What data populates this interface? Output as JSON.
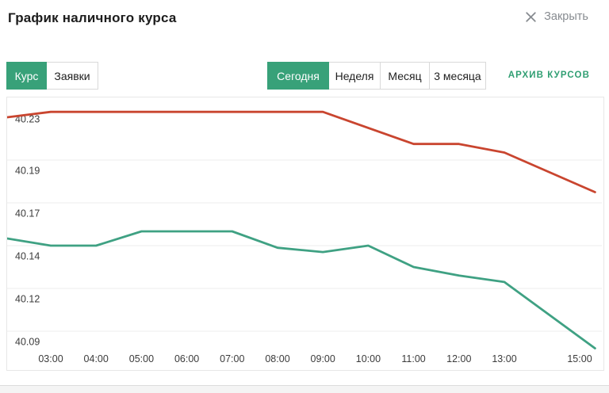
{
  "header": {
    "title": "График наличного курса",
    "close_label": "Закрыть"
  },
  "view_tabs": [
    {
      "label": "Курс",
      "active": true
    },
    {
      "label": "Заявки",
      "active": false
    }
  ],
  "period_tabs": [
    {
      "label": "Сегодня",
      "active": true
    },
    {
      "label": "Неделя",
      "active": false
    },
    {
      "label": "Месяц",
      "active": false
    },
    {
      "label": "3 месяца",
      "active": false
    }
  ],
  "archive_link_label": "АРХИВ КУРСОВ",
  "colors": {
    "accent_green": "#38a179",
    "line_red": "#c9452f",
    "line_green": "#3fa183",
    "grid": "#ececec",
    "axis_text": "#3b3b3b"
  },
  "chart_data": {
    "type": "line",
    "title": "График наличного курса",
    "xlabel": "",
    "ylabel": "",
    "grid": "horizontal",
    "legend": "none",
    "x_unit": "hour_of_day",
    "x_ticks": [
      {
        "hour": 3,
        "label": "03:00"
      },
      {
        "hour": 4,
        "label": "04:00"
      },
      {
        "hour": 5,
        "label": "05:00"
      },
      {
        "hour": 6,
        "label": "06:00"
      },
      {
        "hour": 7,
        "label": "07:00"
      },
      {
        "hour": 8,
        "label": "08:00"
      },
      {
        "hour": 9,
        "label": "09:00"
      },
      {
        "hour": 10,
        "label": "10:00"
      },
      {
        "hour": 11,
        "label": "11:00"
      },
      {
        "hour": 12,
        "label": "12:00"
      },
      {
        "hour": 13,
        "label": "13:00"
      },
      {
        "hour": 15,
        "label": "15:00"
      }
    ],
    "y_ticks": [
      {
        "value": 40.23,
        "label": "40.23",
        "grid": false,
        "dy": 2
      },
      {
        "value": 40.19,
        "label": "40.19"
      },
      {
        "value": 40.17,
        "label": "40.17"
      },
      {
        "value": 40.14,
        "label": "40.14"
      },
      {
        "value": 40.12,
        "label": "40.12"
      },
      {
        "value": 40.09,
        "label": "40.09"
      }
    ],
    "series": [
      {
        "name": "red_line",
        "color": "#c9452f",
        "points": [
          [
            2.04,
            40.23
          ],
          [
            3,
            40.235
          ],
          [
            9,
            40.235
          ],
          [
            11,
            40.205
          ],
          [
            12,
            40.205
          ],
          [
            13,
            40.197
          ],
          [
            15,
            40.175
          ]
        ]
      },
      {
        "name": "green_line",
        "color": "#3fa183",
        "points": [
          [
            2.04,
            40.145
          ],
          [
            3,
            40.14
          ],
          [
            4,
            40.14
          ],
          [
            5,
            40.15
          ],
          [
            7,
            40.15
          ],
          [
            8,
            40.139
          ],
          [
            9,
            40.137
          ],
          [
            10,
            40.14
          ],
          [
            11,
            40.13
          ],
          [
            12,
            40.126
          ],
          [
            13,
            40.123
          ],
          [
            15,
            40.078
          ]
        ]
      }
    ]
  }
}
